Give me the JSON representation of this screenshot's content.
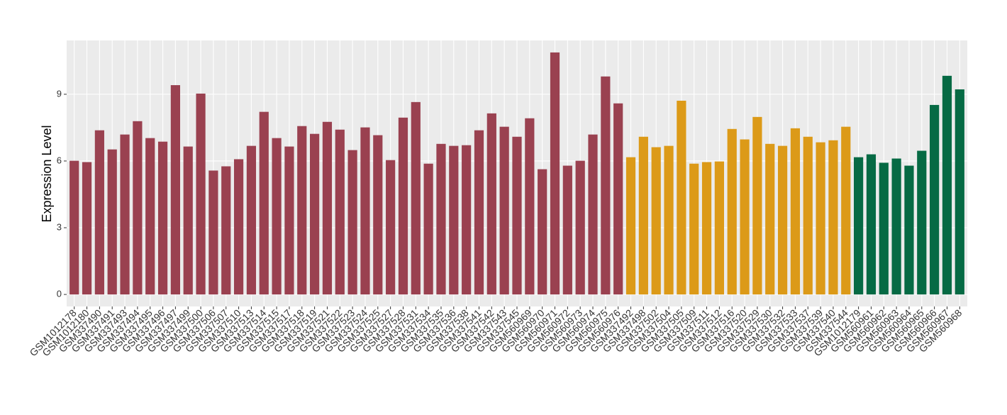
{
  "chart_data": {
    "type": "bar",
    "y_label": "Expression Level",
    "categories": [
      "GSM1012178",
      "GSM1012180",
      "GSM337490",
      "GSM337491",
      "GSM337493",
      "GSM337494",
      "GSM337495",
      "GSM337496",
      "GSM337497",
      "GSM337499",
      "GSM337500",
      "GSM337506",
      "GSM337507",
      "GSM337510",
      "GSM337513",
      "GSM337514",
      "GSM337515",
      "GSM337517",
      "GSM337518",
      "GSM337519",
      "GSM337521",
      "GSM337522",
      "GSM337523",
      "GSM337524",
      "GSM337525",
      "GSM337527",
      "GSM337528",
      "GSM337531",
      "GSM337534",
      "GSM337535",
      "GSM337536",
      "GSM337538",
      "GSM337541",
      "GSM337542",
      "GSM337543",
      "GSM337545",
      "GSM560969",
      "GSM560970",
      "GSM560971",
      "GSM560972",
      "GSM560973",
      "GSM560974",
      "GSM560975",
      "GSM560976",
      "GSM337492",
      "GSM337498",
      "GSM337502",
      "GSM337504",
      "GSM337505",
      "GSM337509",
      "GSM337511",
      "GSM337512",
      "GSM337516",
      "GSM337520",
      "GSM337529",
      "GSM337530",
      "GSM337532",
      "GSM337533",
      "GSM337537",
      "GSM337539",
      "GSM337540",
      "GSM337544",
      "GSM1012179",
      "GSM560961",
      "GSM560962",
      "GSM560963",
      "GSM560964",
      "GSM560965",
      "GSM560966",
      "GSM560967",
      "GSM560968"
    ],
    "values": [
      6.01,
      5.95,
      7.38,
      6.52,
      7.19,
      7.79,
      7.03,
      6.87,
      9.41,
      6.65,
      9.03,
      5.57,
      5.76,
      6.08,
      6.68,
      8.21,
      7.03,
      6.65,
      7.57,
      7.22,
      7.76,
      7.41,
      6.49,
      7.51,
      7.16,
      6.04,
      7.95,
      8.65,
      5.88,
      6.77,
      6.68,
      6.71,
      7.38,
      8.14,
      7.54,
      7.09,
      7.92,
      5.63,
      10.88,
      5.79,
      6.01,
      7.19,
      9.8,
      8.59,
      6.17,
      7.09,
      6.62,
      6.68,
      8.71,
      5.88,
      5.95,
      5.98,
      7.44,
      6.97,
      7.98,
      6.77,
      6.68,
      7.47,
      7.09,
      6.84,
      6.93,
      7.54,
      6.17,
      6.3,
      5.92,
      6.11,
      5.79,
      6.46,
      8.52,
      9.83,
      9.22
    ],
    "colors": [
      "#9a4150",
      "#9a4150",
      "#9a4150",
      "#9a4150",
      "#9a4150",
      "#9a4150",
      "#9a4150",
      "#9a4150",
      "#9a4150",
      "#9a4150",
      "#9a4150",
      "#9a4150",
      "#9a4150",
      "#9a4150",
      "#9a4150",
      "#9a4150",
      "#9a4150",
      "#9a4150",
      "#9a4150",
      "#9a4150",
      "#9a4150",
      "#9a4150",
      "#9a4150",
      "#9a4150",
      "#9a4150",
      "#9a4150",
      "#9a4150",
      "#9a4150",
      "#9a4150",
      "#9a4150",
      "#9a4150",
      "#9a4150",
      "#9a4150",
      "#9a4150",
      "#9a4150",
      "#9a4150",
      "#9a4150",
      "#9a4150",
      "#9a4150",
      "#9a4150",
      "#9a4150",
      "#9a4150",
      "#9a4150",
      "#9a4150",
      "#dc9a18",
      "#dc9a18",
      "#dc9a18",
      "#dc9a18",
      "#dc9a18",
      "#dc9a18",
      "#dc9a18",
      "#dc9a18",
      "#dc9a18",
      "#dc9a18",
      "#dc9a18",
      "#dc9a18",
      "#dc9a18",
      "#dc9a18",
      "#dc9a18",
      "#dc9a18",
      "#dc9a18",
      "#dc9a18",
      "#066a44",
      "#066a44",
      "#066a44",
      "#066a44",
      "#066a44",
      "#066a44",
      "#066a44",
      "#066a44",
      "#066a44"
    ],
    "ylim": [
      -0.54,
      11.42
    ],
    "yticks": [
      0,
      3,
      6,
      9
    ],
    "grid": true
  }
}
